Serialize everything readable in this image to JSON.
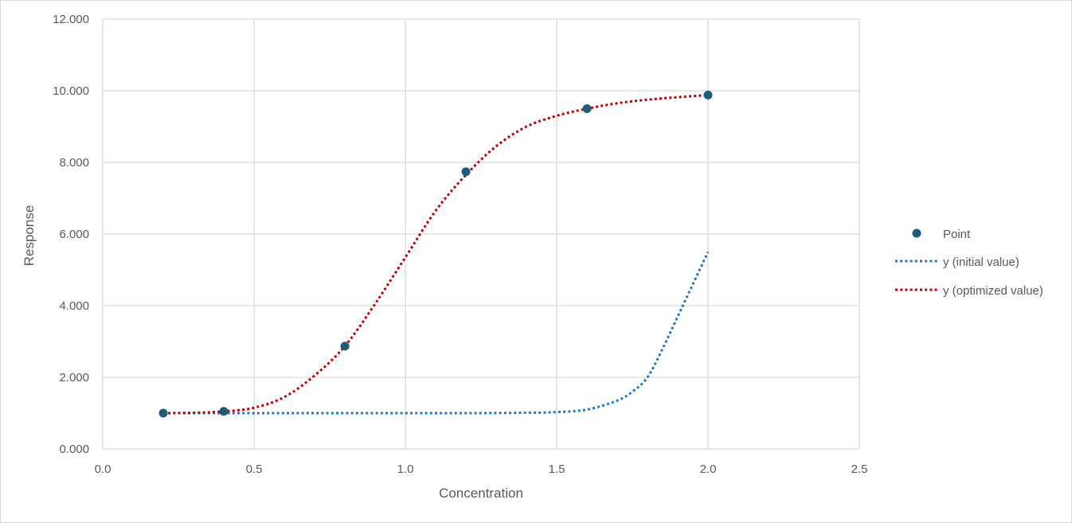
{
  "chart_data": {
    "type": "scatter",
    "xlabel": "Concentration",
    "ylabel": "Response",
    "xlim": [
      0,
      2.5
    ],
    "ylim": [
      0,
      12
    ],
    "x_ticks": [
      "0.0",
      "0.5",
      "1.0",
      "1.5",
      "2.0",
      "2.5"
    ],
    "y_ticks": [
      "0.000",
      "2.000",
      "4.000",
      "6.000",
      "8.000",
      "10.000",
      "12.000"
    ],
    "grid": true,
    "legend_position": "right",
    "series": [
      {
        "name": "Point",
        "kind": "markers",
        "color": "#1f5c7a",
        "x": [
          0.2,
          0.4,
          0.8,
          1.2,
          1.6,
          2.0
        ],
        "y": [
          1.0,
          1.05,
          2.87,
          7.74,
          9.5,
          9.88
        ]
      },
      {
        "name": "y (initial value)",
        "kind": "dotted-line",
        "color": "#1f77c4",
        "x": [
          0.2,
          0.4,
          0.6,
          0.8,
          1.0,
          1.2,
          1.4,
          1.5,
          1.6,
          1.7,
          1.75,
          1.8,
          1.85,
          1.9,
          1.95,
          2.0
        ],
        "y": [
          1.0,
          1.0,
          1.0,
          1.0,
          1.0,
          1.0,
          1.01,
          1.03,
          1.1,
          1.35,
          1.6,
          2.0,
          2.8,
          3.7,
          4.6,
          5.5
        ]
      },
      {
        "name": "y (optimized value)",
        "kind": "dotted-line",
        "color": "#c00000",
        "x": [
          0.2,
          0.3,
          0.4,
          0.5,
          0.6,
          0.7,
          0.8,
          0.9,
          1.0,
          1.1,
          1.2,
          1.3,
          1.4,
          1.5,
          1.6,
          1.7,
          1.8,
          1.9,
          2.0
        ],
        "y": [
          1.0,
          1.01,
          1.05,
          1.15,
          1.45,
          2.05,
          2.87,
          4.05,
          5.35,
          6.65,
          7.65,
          8.45,
          9.0,
          9.3,
          9.5,
          9.65,
          9.75,
          9.82,
          9.88
        ]
      }
    ]
  },
  "colors": {
    "grid": "#d9d9d9",
    "text": "#595959"
  }
}
